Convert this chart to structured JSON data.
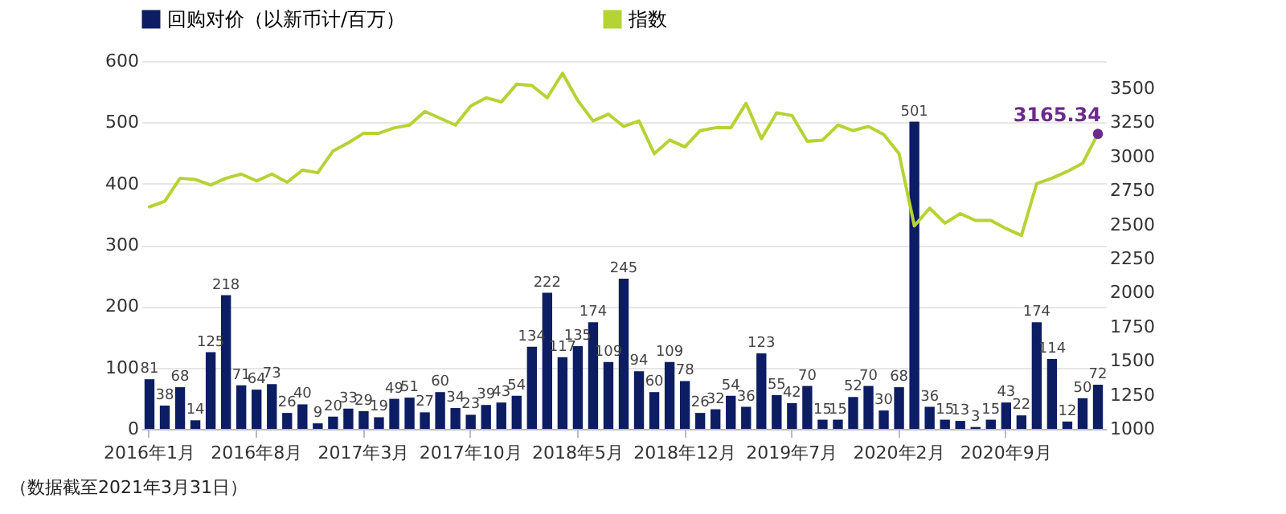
{
  "chart_data": {
    "type": "bar",
    "categories": [
      "2016年1月",
      null,
      null,
      null,
      null,
      null,
      null,
      "2016年8月",
      null,
      null,
      null,
      null,
      null,
      null,
      "2017年3月",
      null,
      null,
      null,
      null,
      null,
      null,
      "2017年10月",
      null,
      null,
      null,
      null,
      null,
      null,
      "2018年5月",
      null,
      null,
      null,
      null,
      null,
      null,
      "2018年12月",
      null,
      null,
      null,
      null,
      null,
      null,
      "2019年7月",
      null,
      null,
      null,
      null,
      null,
      null,
      "2020年2月",
      null,
      null,
      null,
      null,
      null,
      null,
      "2020年9月",
      null,
      null,
      null,
      null,
      null,
      null
    ],
    "series": [
      {
        "name": "回购对价（以新币计/百万）",
        "color": "#0c1d63",
        "values": [
          81,
          38,
          68,
          14,
          125,
          218,
          71,
          64,
          73,
          26,
          40,
          9,
          20,
          33,
          29,
          19,
          49,
          51,
          27,
          60,
          34,
          23,
          39,
          43,
          54,
          134,
          222,
          117,
          135,
          174,
          109,
          245,
          94,
          60,
          109,
          78,
          26,
          32,
          54,
          36,
          123,
          55,
          42,
          70,
          15,
          15,
          52,
          70,
          30,
          68,
          501,
          36,
          15,
          13,
          3,
          15,
          43,
          22,
          174,
          114,
          12,
          50,
          72
        ],
        "value_labels": [
          "81",
          "38",
          "68",
          "14",
          "125",
          "218",
          "71",
          "64",
          "73",
          "26",
          "40",
          "9",
          "20",
          "33",
          "29",
          "19",
          "49",
          "51",
          "27",
          "60",
          "34",
          "23",
          "39",
          "43",
          "54",
          "134",
          "222",
          "117",
          "135",
          "174",
          "109",
          "245",
          "94",
          "60",
          "109",
          "78",
          "26",
          "32",
          "54",
          "36",
          "123",
          "55",
          "42",
          "70",
          "15",
          "15",
          "52",
          "70",
          "30",
          "68",
          "501",
          "36",
          "15",
          "13",
          "3",
          "15",
          "43",
          "22",
          "174",
          "114",
          "12",
          "50",
          "72"
        ]
      },
      {
        "name": "指数",
        "type": "line",
        "axis": "y2",
        "color": "#b5d334",
        "values": [
          2630,
          2670,
          2840,
          2830,
          2790,
          2840,
          2870,
          2820,
          2870,
          2810,
          2900,
          2880,
          3040,
          3100,
          3170,
          3170,
          3210,
          3230,
          3330,
          3280,
          3230,
          3370,
          3430,
          3400,
          3530,
          3520,
          3430,
          3610,
          3410,
          3260,
          3310,
          3220,
          3260,
          3020,
          3120,
          3070,
          3190,
          3210,
          3210,
          3390,
          3130,
          3320,
          3300,
          3110,
          3120,
          3230,
          3190,
          3220,
          3160,
          3020,
          2490,
          2620,
          2510,
          2580,
          2530,
          2530,
          2470,
          2420,
          2800,
          2840,
          2890,
          2950,
          3165.34
        ],
        "value_labels": [
          null,
          null,
          null,
          null,
          null,
          null,
          null,
          null,
          null,
          null,
          null,
          null,
          null,
          null,
          null,
          null,
          null,
          null,
          null,
          null,
          null,
          null,
          null,
          null,
          null,
          null,
          null,
          null,
          null,
          null,
          null,
          null,
          null,
          null,
          null,
          null,
          null,
          null,
          null,
          null,
          null,
          null,
          null,
          null,
          null,
          null,
          null,
          null,
          null,
          null,
          null,
          null,
          null,
          null,
          null,
          null,
          null,
          null,
          null,
          null,
          null,
          null,
          "3165.34"
        ]
      }
    ],
    "ylim": [
      0,
      600
    ],
    "yticks": [
      0,
      100,
      200,
      300,
      400,
      500,
      600
    ],
    "y2lim": [
      1000,
      3700
    ],
    "y2ticks": [
      1000,
      1250,
      1500,
      1750,
      2000,
      2250,
      2500,
      2750,
      3000,
      3250,
      3500
    ],
    "grid": "y",
    "legend": "top",
    "annotations": [
      "（数据截至2021年3月31日）"
    ]
  }
}
